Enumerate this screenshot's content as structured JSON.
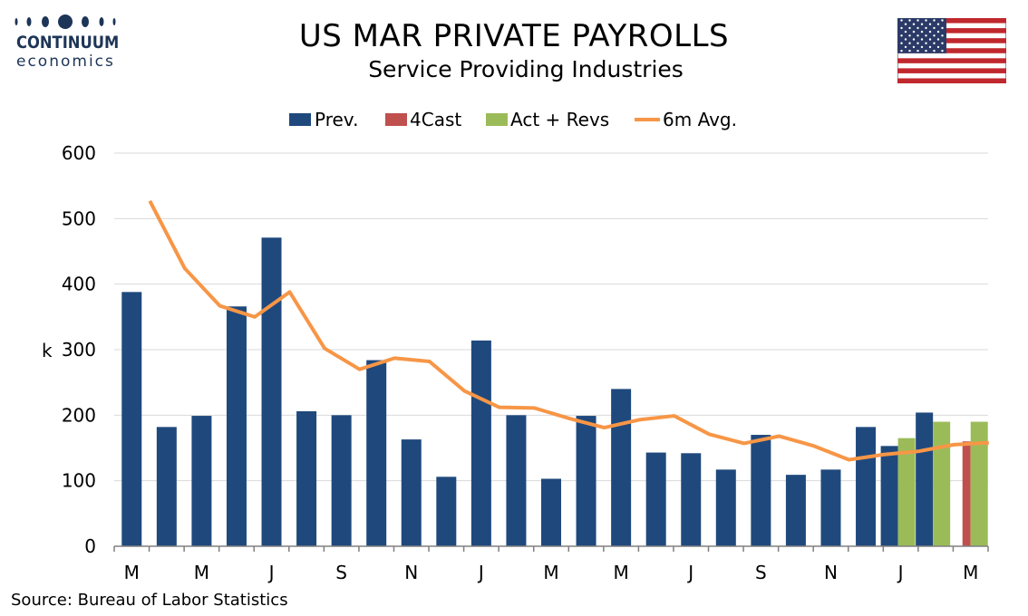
{
  "header": {
    "title": "US MAR PRIVATE PAYROLLS",
    "subtitle": "Service Providing Industries"
  },
  "logo": {
    "name": "CONTINUUM",
    "sub": "economics",
    "dot_color": "#1d3557"
  },
  "footer": {
    "source": "Source: Bureau of Labor Statistics"
  },
  "colors": {
    "prev": "#1f497d",
    "forecast": "#c0504d",
    "actual": "#9bbb59",
    "avg": "#f79646",
    "grid": "#d9d9d9"
  },
  "chart_data": {
    "type": "bar",
    "ylabel": "k",
    "ylim": [
      0,
      600
    ],
    "yticks": [
      0,
      100,
      200,
      300,
      400,
      500,
      600
    ],
    "grid": true,
    "legend_position": "top",
    "legend": [
      "Prev.",
      "4Cast",
      "Act + Revs",
      "6m Avg."
    ],
    "x_tick_labels": [
      "M",
      "M",
      "J",
      "S",
      "N",
      "J",
      "M",
      "M",
      "J",
      "S",
      "N",
      "J",
      "M"
    ],
    "months": 25,
    "prev": [
      388,
      182,
      199,
      366,
      471,
      206,
      200,
      284,
      163,
      106,
      314,
      200,
      103,
      199,
      240,
      143,
      142,
      117,
      170,
      109,
      117,
      182,
      153,
      204,
      null
    ],
    "forecast": [
      null,
      null,
      null,
      null,
      null,
      null,
      null,
      null,
      null,
      null,
      null,
      null,
      null,
      null,
      null,
      null,
      null,
      null,
      null,
      null,
      null,
      null,
      null,
      null,
      160
    ],
    "actual": [
      null,
      null,
      null,
      null,
      null,
      null,
      null,
      null,
      null,
      null,
      null,
      null,
      null,
      null,
      null,
      null,
      null,
      null,
      null,
      null,
      null,
      null,
      165,
      190,
      190
    ],
    "avg_6m": [
      527,
      424,
      367,
      350,
      388,
      302,
      270,
      287,
      282,
      237,
      212,
      211,
      195,
      181,
      193,
      199,
      171,
      157,
      168,
      153,
      132,
      140,
      145,
      155,
      158
    ]
  }
}
